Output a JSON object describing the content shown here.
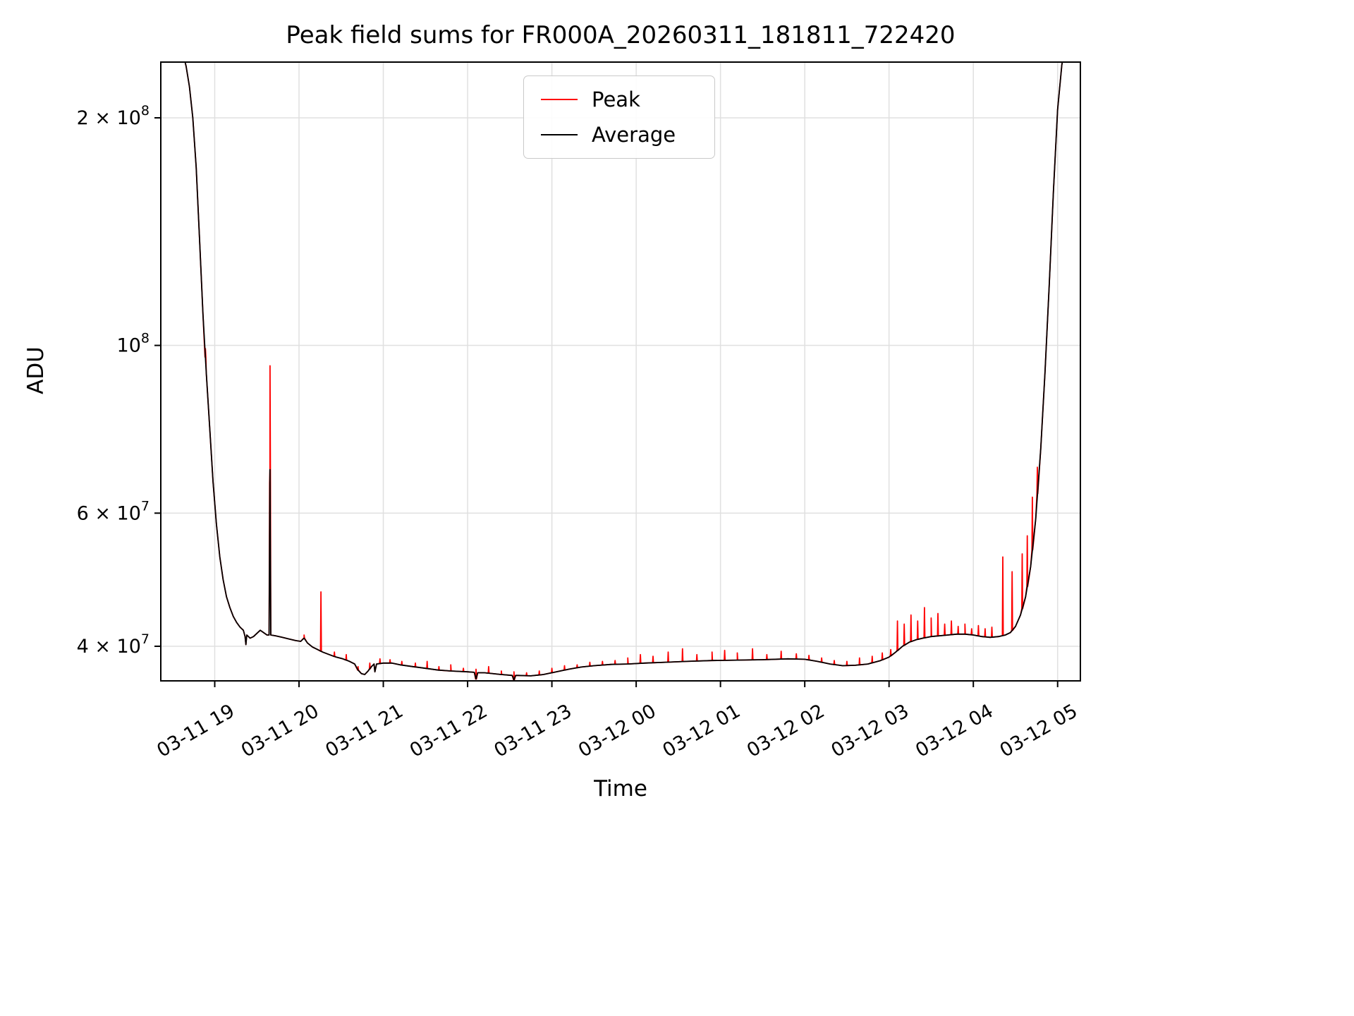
{
  "chart_data": {
    "type": "line",
    "title": "Peak field sums for FR000A_20260311_181811_722420",
    "xlabel": "Time",
    "ylabel": "ADU",
    "yscale": "log",
    "grid": true,
    "legend_loc": "upper center",
    "xlim_hours": [
      18.36,
      29.27
    ],
    "ylim": [
      36000000.0,
      237000000.0
    ],
    "x_ticks": [
      {
        "hour": 19,
        "label": "03-11 19"
      },
      {
        "hour": 20,
        "label": "03-11 20"
      },
      {
        "hour": 21,
        "label": "03-11 21"
      },
      {
        "hour": 22,
        "label": "03-11 22"
      },
      {
        "hour": 23,
        "label": "03-11 23"
      },
      {
        "hour": 24,
        "label": "03-12 00"
      },
      {
        "hour": 25,
        "label": "03-12 01"
      },
      {
        "hour": 26,
        "label": "03-12 02"
      },
      {
        "hour": 27,
        "label": "03-12 03"
      },
      {
        "hour": 28,
        "label": "03-12 04"
      },
      {
        "hour": 29,
        "label": "03-12 05"
      }
    ],
    "y_ticks": [
      {
        "value": 40000000.0,
        "base": "4 × 10",
        "exp": "7"
      },
      {
        "value": 60000000.0,
        "base": "6 × 10",
        "exp": "7"
      },
      {
        "value": 100000000.0,
        "base": "10",
        "exp": "8"
      },
      {
        "value": 200000000.0,
        "base": "2 × 10",
        "exp": "8"
      }
    ],
    "series": [
      {
        "name": "Peak",
        "color": "#ff0000",
        "base": "Average",
        "spikes": [
          [
            18.89,
            99000000.0
          ],
          [
            19.656,
            94000000.0
          ],
          [
            20.06,
            41400000.0
          ],
          [
            20.26,
            47200000.0
          ],
          [
            20.42,
            39300000.0
          ],
          [
            20.56,
            39000000.0
          ],
          [
            20.7,
            37600000.0
          ],
          [
            20.84,
            38000000.0
          ],
          [
            20.96,
            38500000.0
          ],
          [
            21.08,
            38400000.0
          ],
          [
            21.22,
            38200000.0
          ],
          [
            21.38,
            38000000.0
          ],
          [
            21.52,
            38200000.0
          ],
          [
            21.66,
            37600000.0
          ],
          [
            21.8,
            37800000.0
          ],
          [
            21.95,
            37400000.0
          ],
          [
            22.1,
            37300000.0
          ],
          [
            22.25,
            37600000.0
          ],
          [
            22.4,
            37100000.0
          ],
          [
            22.55,
            37000000.0
          ],
          [
            22.7,
            36900000.0
          ],
          [
            22.85,
            37100000.0
          ],
          [
            23.0,
            37400000.0
          ],
          [
            23.15,
            37700000.0
          ],
          [
            23.3,
            37800000.0
          ],
          [
            23.45,
            38100000.0
          ],
          [
            23.6,
            38200000.0
          ],
          [
            23.75,
            38300000.0
          ],
          [
            23.9,
            38600000.0
          ],
          [
            24.05,
            39000000.0
          ],
          [
            24.2,
            38800000.0
          ],
          [
            24.38,
            39300000.0
          ],
          [
            24.55,
            39700000.0
          ],
          [
            24.72,
            39000000.0
          ],
          [
            24.9,
            39300000.0
          ],
          [
            25.05,
            39500000.0
          ],
          [
            25.2,
            39200000.0
          ],
          [
            25.38,
            39700000.0
          ],
          [
            25.55,
            39000000.0
          ],
          [
            25.72,
            39400000.0
          ],
          [
            25.9,
            39100000.0
          ],
          [
            26.05,
            38900000.0
          ],
          [
            26.2,
            38600000.0
          ],
          [
            26.35,
            38300000.0
          ],
          [
            26.5,
            38200000.0
          ],
          [
            26.65,
            38600000.0
          ],
          [
            26.8,
            38800000.0
          ],
          [
            26.92,
            39200000.0
          ],
          [
            27.02,
            39600000.0
          ],
          [
            27.1,
            43200000.0
          ],
          [
            27.18,
            42800000.0
          ],
          [
            27.26,
            44000000.0
          ],
          [
            27.34,
            43200000.0
          ],
          [
            27.42,
            45000000.0
          ],
          [
            27.5,
            43600000.0
          ],
          [
            27.58,
            44200000.0
          ],
          [
            27.66,
            42800000.0
          ],
          [
            27.74,
            43200000.0
          ],
          [
            27.82,
            42500000.0
          ],
          [
            27.9,
            42800000.0
          ],
          [
            27.98,
            42200000.0
          ],
          [
            28.06,
            42600000.0
          ],
          [
            28.14,
            42200000.0
          ],
          [
            28.22,
            42400000.0
          ],
          [
            28.35,
            52500000.0
          ],
          [
            28.46,
            50200000.0
          ],
          [
            28.58,
            53000000.0
          ],
          [
            28.64,
            56000000.0
          ],
          [
            28.7,
            63000000.0
          ],
          [
            28.76,
            69000000.0
          ]
        ]
      },
      {
        "name": "Average",
        "color": "#000000",
        "points": [
          [
            18.4,
            290000000.0
          ],
          [
            18.5,
            272000000.0
          ],
          [
            18.58,
            252000000.0
          ],
          [
            18.62,
            244000000.0
          ],
          [
            18.66,
            234000000.0
          ],
          [
            18.7,
            220000000.0
          ],
          [
            18.74,
            200000000.0
          ],
          [
            18.78,
            172000000.0
          ],
          [
            18.82,
            138000000.0
          ],
          [
            18.86,
            110000000.0
          ],
          [
            18.9,
            92000000.0
          ],
          [
            18.94,
            78000000.0
          ],
          [
            18.98,
            66000000.0
          ],
          [
            19.02,
            58000000.0
          ],
          [
            19.06,
            52500000.0
          ],
          [
            19.1,
            49000000.0
          ],
          [
            19.14,
            46500000.0
          ],
          [
            19.18,
            45000000.0
          ],
          [
            19.22,
            43800000.0
          ],
          [
            19.26,
            43000000.0
          ],
          [
            19.3,
            42400000.0
          ],
          [
            19.34,
            42000000.0
          ],
          [
            19.36,
            41200000.0
          ],
          [
            19.37,
            40200000.0
          ],
          [
            19.38,
            41400000.0
          ],
          [
            19.42,
            41000000.0
          ],
          [
            19.46,
            41200000.0
          ],
          [
            19.5,
            41600000.0
          ],
          [
            19.54,
            42000000.0
          ],
          [
            19.58,
            41700000.0
          ],
          [
            19.62,
            41400000.0
          ],
          [
            19.645,
            41400000.0
          ],
          [
            19.655,
            68500000.0
          ],
          [
            19.665,
            41400000.0
          ],
          [
            19.72,
            41300000.0
          ],
          [
            19.8,
            41100000.0
          ],
          [
            19.88,
            40900000.0
          ],
          [
            19.96,
            40700000.0
          ],
          [
            20.02,
            40600000.0
          ],
          [
            20.06,
            41000000.0
          ],
          [
            20.1,
            40400000.0
          ],
          [
            20.16,
            39900000.0
          ],
          [
            20.22,
            39600000.0
          ],
          [
            20.28,
            39300000.0
          ],
          [
            20.36,
            39000000.0
          ],
          [
            20.44,
            38700000.0
          ],
          [
            20.52,
            38500000.0
          ],
          [
            20.6,
            38200000.0
          ],
          [
            20.66,
            37900000.0
          ],
          [
            20.7,
            37200000.0
          ],
          [
            20.74,
            36800000.0
          ],
          [
            20.78,
            36700000.0
          ],
          [
            20.82,
            37100000.0
          ],
          [
            20.86,
            37600000.0
          ],
          [
            20.89,
            37900000.0
          ],
          [
            20.9,
            37000000.0
          ],
          [
            20.92,
            37900000.0
          ],
          [
            21.0,
            38000000.0
          ],
          [
            21.1,
            38000000.0
          ],
          [
            21.2,
            37800000.0
          ],
          [
            21.35,
            37600000.0
          ],
          [
            21.5,
            37400000.0
          ],
          [
            21.65,
            37200000.0
          ],
          [
            21.8,
            37100000.0
          ],
          [
            22.0,
            37000000.0
          ],
          [
            22.08,
            36950000.0
          ],
          [
            22.1,
            36200000.0
          ],
          [
            22.12,
            36900000.0
          ],
          [
            22.2,
            36900000.0
          ],
          [
            22.4,
            36700000.0
          ],
          [
            22.53,
            36600000.0
          ],
          [
            22.55,
            36100000.0
          ],
          [
            22.57,
            36600000.0
          ],
          [
            22.6,
            36600000.0
          ],
          [
            22.75,
            36550000.0
          ],
          [
            22.9,
            36700000.0
          ],
          [
            23.05,
            37000000.0
          ],
          [
            23.2,
            37300000.0
          ],
          [
            23.35,
            37550000.0
          ],
          [
            23.5,
            37700000.0
          ],
          [
            23.7,
            37850000.0
          ],
          [
            23.9,
            37900000.0
          ],
          [
            24.1,
            38000000.0
          ],
          [
            24.35,
            38100000.0
          ],
          [
            24.6,
            38200000.0
          ],
          [
            24.9,
            38300000.0
          ],
          [
            25.2,
            38350000.0
          ],
          [
            25.5,
            38400000.0
          ],
          [
            25.8,
            38500000.0
          ],
          [
            26.0,
            38450000.0
          ],
          [
            26.15,
            38200000.0
          ],
          [
            26.3,
            37900000.0
          ],
          [
            26.45,
            37700000.0
          ],
          [
            26.6,
            37750000.0
          ],
          [
            26.75,
            37900000.0
          ],
          [
            26.9,
            38300000.0
          ],
          [
            27.0,
            38700000.0
          ],
          [
            27.08,
            39300000.0
          ],
          [
            27.16,
            40000000.0
          ],
          [
            27.24,
            40500000.0
          ],
          [
            27.32,
            40800000.0
          ],
          [
            27.4,
            41000000.0
          ],
          [
            27.5,
            41200000.0
          ],
          [
            27.6,
            41300000.0
          ],
          [
            27.7,
            41400000.0
          ],
          [
            27.8,
            41500000.0
          ],
          [
            27.9,
            41500000.0
          ],
          [
            28.0,
            41400000.0
          ],
          [
            28.1,
            41200000.0
          ],
          [
            28.2,
            41100000.0
          ],
          [
            28.3,
            41200000.0
          ],
          [
            28.38,
            41400000.0
          ],
          [
            28.44,
            41700000.0
          ],
          [
            28.5,
            42500000.0
          ],
          [
            28.56,
            44000000.0
          ],
          [
            28.62,
            46500000.0
          ],
          [
            28.68,
            51000000.0
          ],
          [
            28.74,
            59000000.0
          ],
          [
            28.8,
            73000000.0
          ],
          [
            28.85,
            92000000.0
          ],
          [
            28.9,
            120000000.0
          ],
          [
            28.95,
            160000000.0
          ],
          [
            29.0,
            205000000.0
          ],
          [
            29.05,
            235000000.0
          ],
          [
            29.1,
            252000000.0
          ],
          [
            29.14,
            265000000.0
          ]
        ]
      }
    ]
  },
  "colors": {
    "grid": "#e0e0e0",
    "spine": "#000000",
    "peak": "#ff0000",
    "average": "#000000"
  }
}
